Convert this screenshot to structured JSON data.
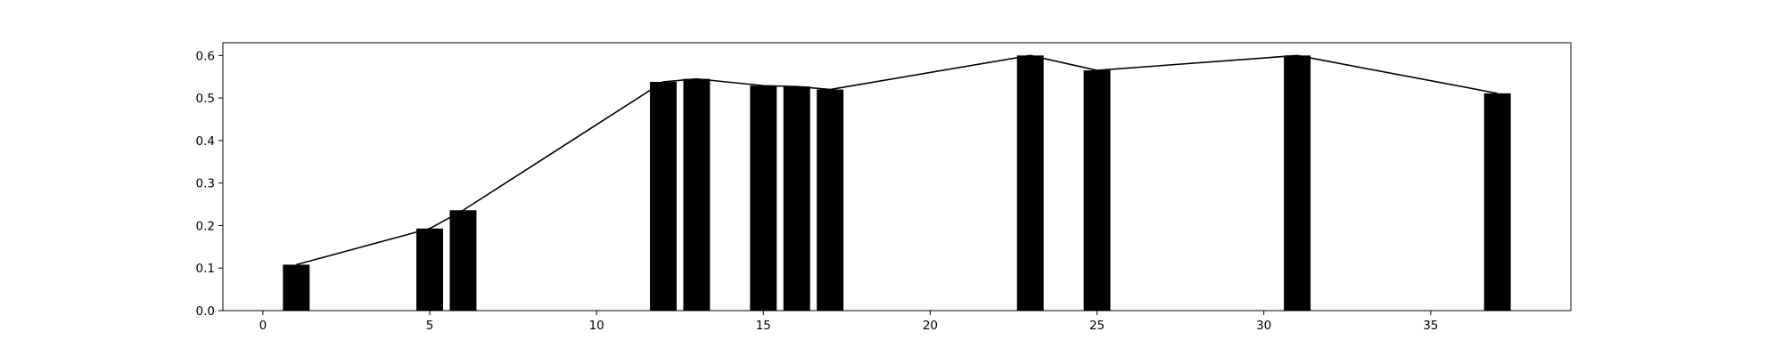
{
  "chart_data": {
    "type": "bar",
    "title": "",
    "xlabel": "",
    "ylabel": "",
    "xlim": [
      -1.2,
      39.2
    ],
    "ylim": [
      0,
      0.63
    ],
    "grid": false,
    "x_ticks": [
      0,
      5,
      10,
      15,
      20,
      25,
      30,
      35
    ],
    "y_ticks": [
      0.0,
      0.1,
      0.2,
      0.3,
      0.4,
      0.5,
      0.6
    ],
    "x_tick_labels": [
      "0",
      "5",
      "10",
      "15",
      "20",
      "25",
      "30",
      "35"
    ],
    "y_tick_labels": [
      "0.0",
      "0.1",
      "0.2",
      "0.3",
      "0.4",
      "0.5",
      "0.6"
    ],
    "bar_width": 0.8,
    "bar_color": "#000000",
    "line_color": "#000000",
    "series": [
      {
        "x": [
          1,
          5,
          6,
          12,
          13,
          15,
          16,
          17,
          23,
          25,
          31,
          37
        ],
        "values": [
          0.108,
          0.193,
          0.236,
          0.538,
          0.545,
          0.529,
          0.527,
          0.52,
          0.6,
          0.565,
          0.6,
          0.511
        ]
      }
    ]
  }
}
